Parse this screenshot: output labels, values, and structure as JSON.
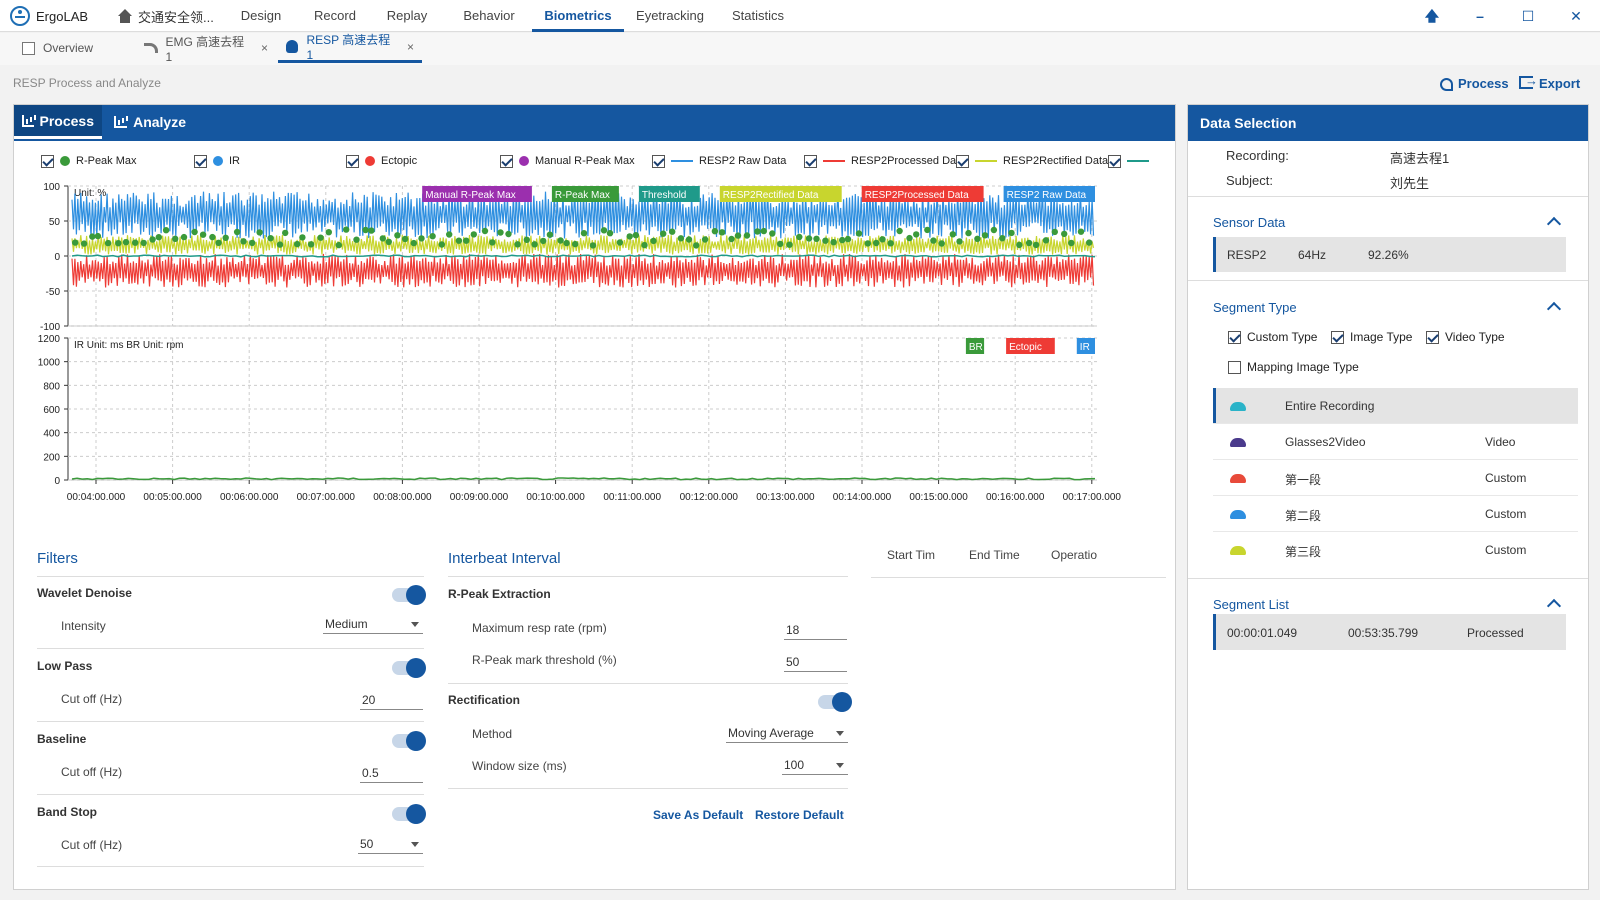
{
  "app": {
    "name": "ErgoLAB",
    "project": "交通安全领..."
  },
  "nav": {
    "tabs": [
      "Design",
      "Record",
      "Replay",
      "Behavior",
      "Biometrics",
      "Eyetracking",
      "Statistics"
    ],
    "active": "Biometrics"
  },
  "window": {
    "pin": "🡅",
    "minimize": "–",
    "maximize": "☐",
    "close": "✕"
  },
  "doctabs": [
    {
      "label": "Overview"
    },
    {
      "label": "EMG 高速去程1",
      "close": "×"
    },
    {
      "label": "RESP 高速去程1",
      "close": "×"
    }
  ],
  "page": {
    "title": "RESP Process and Analyze",
    "process": "Process",
    "export": "Export"
  },
  "main": {
    "tabs": [
      "Process",
      "Analyze"
    ]
  },
  "legend": [
    {
      "label": "R-Peak Max",
      "kind": "dot",
      "color": "#3a9a3a"
    },
    {
      "label": "IR",
      "kind": "dot",
      "color": "#2e8fe0"
    },
    {
      "label": "Ectopic",
      "kind": "dot",
      "color": "#ee3b35"
    },
    {
      "label": "Manual R-Peak Max",
      "kind": "dot",
      "color": "#9b2fae"
    },
    {
      "label": "RESP2 Raw Data",
      "kind": "line",
      "color": "#2e8fe0"
    },
    {
      "label": "RESP2Processed Data",
      "kind": "line",
      "color": "#ee3b35"
    },
    {
      "label": "RESP2Rectified Data",
      "kind": "line",
      "color": "#c8d52e"
    },
    {
      "label": "",
      "kind": "line",
      "color": "#1f9a8a"
    }
  ],
  "chart_data": [
    {
      "type": "line",
      "unit_label": "Unit: %",
      "ylim": [
        -100,
        100
      ],
      "yticks": [
        100,
        50,
        0,
        -50,
        -100
      ],
      "tags": [
        {
          "label": "Manual R-Peak Max",
          "color": "#9b2fae"
        },
        {
          "label": "R-Peak Max",
          "color": "#3a9a3a"
        },
        {
          "label": "Threshold",
          "color": "#1f9a8a"
        },
        {
          "label": "RESP2Rectified Data",
          "color": "#c8d52e"
        },
        {
          "label": "RESP2Processed Data",
          "color": "#ee3b35"
        },
        {
          "label": "RESP2 Raw Data",
          "color": "#2e8fe0"
        }
      ],
      "series": [
        {
          "name": "RESP2 Raw Data",
          "color": "#2e8fe0",
          "band": [
            25,
            92
          ]
        },
        {
          "name": "RESP2Rectified Data",
          "color": "#c8d52e",
          "band": [
            2,
            30
          ]
        },
        {
          "name": "RESP2Processed Data",
          "color": "#ee3b35",
          "band": [
            -45,
            3
          ]
        },
        {
          "name": "Threshold",
          "color": "#1f9a8a",
          "value": 0
        },
        {
          "name": "R-Peak Max",
          "color": "#3a9a3a",
          "band": [
            15,
            38
          ]
        }
      ]
    },
    {
      "type": "line",
      "unit_label": "IR Unit: ms BR Unit: rpm",
      "ylim": [
        0,
        1200
      ],
      "yticks": [
        1200,
        1000,
        800,
        600,
        400,
        200,
        0
      ],
      "tags": [
        {
          "label": "BR",
          "color": "#3a9a3a"
        },
        {
          "label": "Ectopic",
          "color": "#ee3b35"
        },
        {
          "label": "IR",
          "color": "#2e8fe0"
        }
      ],
      "series": [
        {
          "name": "BR",
          "color": "#3a9a3a",
          "value": 10
        }
      ],
      "x": [
        "00:04:00.000",
        "00:05:00.000",
        "00:06:00.000",
        "00:07:00.000",
        "00:08:00.000",
        "00:09:00.000",
        "00:10:00.000",
        "00:11:00.000",
        "00:12:00.000",
        "00:13:00.000",
        "00:14:00.000",
        "00:15:00.000",
        "00:16:00.000",
        "00:17:00.000"
      ]
    }
  ],
  "filters": {
    "title": "Filters",
    "wavelet": {
      "label": "Wavelet Denoise",
      "intensity_label": "Intensity",
      "intensity": "Medium"
    },
    "lowpass": {
      "label": "Low Pass",
      "cutoff_label": "Cut off (Hz)",
      "cutoff": "20"
    },
    "baseline": {
      "label": "Baseline",
      "cutoff_label": "Cut off (Hz)",
      "cutoff": "0.5"
    },
    "bandstop": {
      "label": "Band Stop",
      "cutoff_label": "Cut off (Hz)",
      "cutoff": "50"
    }
  },
  "interbeat": {
    "title": "Interbeat Interval",
    "extraction": "R-Peak Extraction",
    "max_rate_label": "Maximum resp rate (rpm)",
    "max_rate": "18",
    "threshold_label": "R-Peak mark threshold (%)",
    "threshold": "50",
    "rectification": "Rectification",
    "method_label": "Method",
    "method": "Moving Average",
    "window_label": "Window size (ms)",
    "window": "100",
    "save": "Save As Default",
    "restore": "Restore Default"
  },
  "segtable": {
    "cols": [
      "Start Tim",
      "End Time",
      "Operatio"
    ]
  },
  "side": {
    "title": "Data Selection",
    "recording_label": "Recording:",
    "recording": "高速去程1",
    "subject_label": "Subject:",
    "subject": "刘先生",
    "sensor_title": "Sensor Data",
    "sensor": {
      "name": "RESP2",
      "rate": "64Hz",
      "pct": "92.26%"
    },
    "segtype_title": "Segment Type",
    "types": [
      {
        "label": "Custom Type",
        "on": true
      },
      {
        "label": "Image Type",
        "on": true
      },
      {
        "label": "Video Type",
        "on": true
      },
      {
        "label": "Mapping Image Type",
        "on": false
      }
    ],
    "segments": [
      {
        "name": "Entire Recording",
        "type": "",
        "color": "#2ab3c8"
      },
      {
        "name": "Glasses2Video",
        "type": "Video",
        "color": "#4a3a8c"
      },
      {
        "name": "第一段",
        "type": "Custom",
        "color": "#e84a3a"
      },
      {
        "name": "第二段",
        "type": "Custom",
        "color": "#2e8fe0"
      },
      {
        "name": "第三段",
        "type": "Custom",
        "color": "#c8d52e"
      }
    ],
    "seglist_title": "Segment List",
    "seglist": {
      "start": "00:00:01.049",
      "end": "00:53:35.799",
      "status": "Processed"
    }
  }
}
